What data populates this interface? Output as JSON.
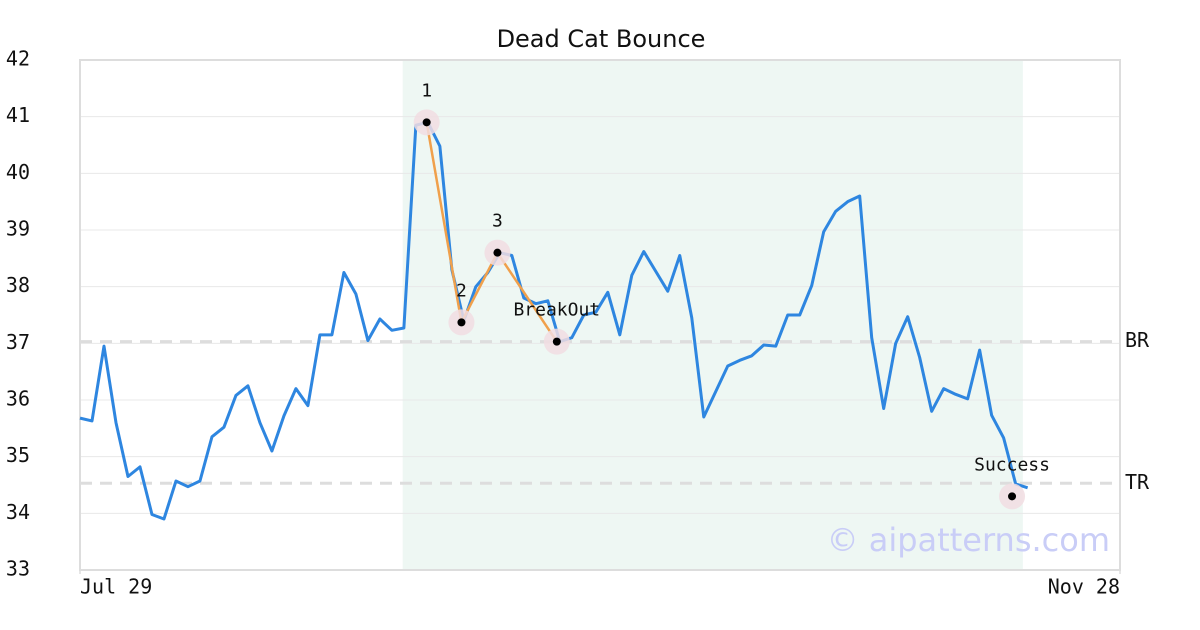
{
  "chart_data": {
    "type": "line",
    "title": "Dead Cat Bounce",
    "xlim": [
      0,
      86.7
    ],
    "xticks": [
      {
        "value": 0,
        "label": "Jul 29"
      },
      {
        "value": 86.7,
        "label": "Nov 28"
      }
    ],
    "ylim": [
      33,
      42
    ],
    "yticks": [
      33,
      34,
      35,
      36,
      37,
      38,
      39,
      40,
      41,
      42
    ],
    "grid": true,
    "highlight": {
      "from": 26.9,
      "to": 78.6,
      "color": "#eef7f3"
    },
    "series": [
      {
        "color": "#2e86e0",
        "values": [
          35.68,
          35.63,
          36.95,
          35.6,
          34.65,
          34.82,
          33.98,
          33.9,
          34.57,
          34.47,
          34.57,
          35.35,
          35.52,
          36.08,
          36.25,
          35.6,
          35.1,
          35.72,
          36.2,
          35.9,
          37.15,
          37.15,
          38.25,
          37.87,
          37.05,
          37.43,
          37.23,
          37.27,
          40.85,
          40.9,
          40.48,
          38.3,
          37.4,
          38.0,
          38.25,
          38.6,
          38.55,
          37.8,
          37.7,
          37.75,
          37.03,
          37.1,
          37.5,
          37.55,
          37.9,
          37.15,
          38.2,
          38.62,
          38.27,
          37.92,
          38.55,
          37.45,
          35.7,
          36.15,
          36.6,
          36.7,
          36.78,
          36.97,
          36.95,
          37.5,
          37.5,
          38.02,
          38.97,
          39.33,
          39.5,
          39.6,
          37.1,
          35.85,
          37.0,
          37.47,
          36.75,
          35.8,
          36.2,
          36.1,
          36.02,
          36.88,
          35.73,
          35.33,
          34.52,
          34.45
        ]
      }
    ],
    "levels": [
      {
        "label": "BR",
        "value": 37.03
      },
      {
        "label": "TR",
        "value": 34.53
      }
    ],
    "pattern_color": "#f0a04b",
    "points": [
      {
        "label": "1",
        "x": 28.9,
        "y": 40.9
      },
      {
        "label": "2",
        "x": 31.8,
        "y": 37.37
      },
      {
        "label": "3",
        "x": 34.8,
        "y": 38.6
      },
      {
        "label": "BreakOut",
        "x": 39.75,
        "y": 37.03
      },
      {
        "label": "Success",
        "x": 77.7,
        "y": 34.3
      }
    ],
    "watermark": "© aipatterns.com"
  }
}
